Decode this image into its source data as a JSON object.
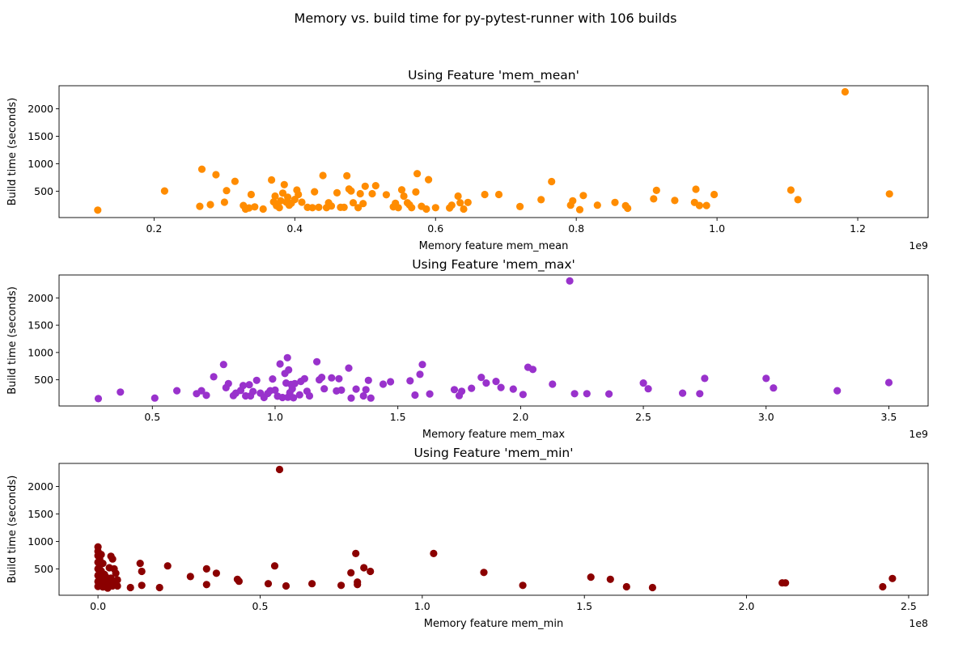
{
  "suptitle": "Memory vs. build time for py-pytest-runner with 106 builds",
  "chart_data": [
    {
      "type": "scatter",
      "title": "Using Feature 'mem_mean'",
      "xlabel": "Memory feature mem_mean",
      "ylabel": "Build time (seconds)",
      "x_offset_label": "1e9",
      "color": "#ff8c00",
      "xlim": [
        0.065,
        1.3
      ],
      "ylim": [
        20,
        2420
      ],
      "xticks": [
        0.2,
        0.4,
        0.6,
        0.8,
        1.0,
        1.2
      ],
      "xtick_labels": [
        "0.2",
        "0.4",
        "0.6",
        "0.8",
        "1.0",
        "1.2"
      ],
      "yticks": [
        500,
        1000,
        1500,
        2000
      ],
      "ytick_labels": [
        "500",
        "1000",
        "1500",
        "2000"
      ],
      "points": [
        [
          0.12,
          155
        ],
        [
          0.215,
          505
        ],
        [
          0.265,
          225
        ],
        [
          0.268,
          900
        ],
        [
          0.28,
          255
        ],
        [
          0.288,
          800
        ],
        [
          0.3,
          300
        ],
        [
          0.303,
          510
        ],
        [
          0.315,
          680
        ],
        [
          0.327,
          240
        ],
        [
          0.33,
          175
        ],
        [
          0.335,
          195
        ],
        [
          0.338,
          440
        ],
        [
          0.343,
          215
        ],
        [
          0.355,
          175
        ],
        [
          0.367,
          705
        ],
        [
          0.37,
          305
        ],
        [
          0.372,
          410
        ],
        [
          0.374,
          235
        ],
        [
          0.378,
          200
        ],
        [
          0.38,
          325
        ],
        [
          0.383,
          465
        ],
        [
          0.385,
          620
        ],
        [
          0.388,
          300
        ],
        [
          0.39,
          390
        ],
        [
          0.392,
          245
        ],
        [
          0.395,
          280
        ],
        [
          0.4,
          350
        ],
        [
          0.403,
          520
        ],
        [
          0.405,
          440
        ],
        [
          0.41,
          300
        ],
        [
          0.418,
          205
        ],
        [
          0.425,
          200
        ],
        [
          0.428,
          490
        ],
        [
          0.434,
          205
        ],
        [
          0.44,
          785
        ],
        [
          0.445,
          200
        ],
        [
          0.448,
          290
        ],
        [
          0.452,
          230
        ],
        [
          0.46,
          470
        ],
        [
          0.465,
          205
        ],
        [
          0.47,
          205
        ],
        [
          0.474,
          780
        ],
        [
          0.477,
          540
        ],
        [
          0.48,
          505
        ],
        [
          0.483,
          290
        ],
        [
          0.49,
          200
        ],
        [
          0.493,
          455
        ],
        [
          0.497,
          275
        ],
        [
          0.5,
          590
        ],
        [
          0.51,
          455
        ],
        [
          0.515,
          600
        ],
        [
          0.53,
          435
        ],
        [
          0.54,
          215
        ],
        [
          0.543,
          280
        ],
        [
          0.547,
          200
        ],
        [
          0.552,
          525
        ],
        [
          0.555,
          410
        ],
        [
          0.56,
          290
        ],
        [
          0.563,
          250
        ],
        [
          0.566,
          200
        ],
        [
          0.572,
          485
        ],
        [
          0.574,
          820
        ],
        [
          0.58,
          225
        ],
        [
          0.587,
          175
        ],
        [
          0.59,
          710
        ],
        [
          0.6,
          200
        ],
        [
          0.62,
          195
        ],
        [
          0.623,
          245
        ],
        [
          0.632,
          410
        ],
        [
          0.635,
          290
        ],
        [
          0.64,
          175
        ],
        [
          0.646,
          295
        ],
        [
          0.67,
          440
        ],
        [
          0.69,
          440
        ],
        [
          0.72,
          220
        ],
        [
          0.75,
          345
        ],
        [
          0.765,
          675
        ],
        [
          0.792,
          245
        ],
        [
          0.795,
          325
        ],
        [
          0.805,
          165
        ],
        [
          0.81,
          420
        ],
        [
          0.83,
          245
        ],
        [
          0.855,
          295
        ],
        [
          0.87,
          235
        ],
        [
          0.873,
          190
        ],
        [
          0.91,
          360
        ],
        [
          0.914,
          515
        ],
        [
          0.94,
          330
        ],
        [
          0.968,
          295
        ],
        [
          0.97,
          535
        ],
        [
          0.975,
          240
        ],
        [
          0.985,
          240
        ],
        [
          0.996,
          440
        ],
        [
          1.105,
          520
        ],
        [
          1.115,
          345
        ],
        [
          1.182,
          2310
        ],
        [
          1.245,
          450
        ]
      ]
    },
    {
      "type": "scatter",
      "title": "Using Feature 'mem_max'",
      "xlabel": "Memory feature mem_max",
      "ylabel": "Build time (seconds)",
      "x_offset_label": "1e9",
      "color": "#9932cc",
      "xlim": [
        0.12,
        3.66
      ],
      "ylim": [
        20,
        2420
      ],
      "xticks": [
        0.5,
        1.0,
        1.5,
        2.0,
        2.5,
        3.0,
        3.5
      ],
      "xtick_labels": [
        "0.5",
        "1.0",
        "1.5",
        "2.0",
        "2.5",
        "3.0",
        "3.5"
      ],
      "yticks": [
        500,
        1000,
        1500,
        2000
      ],
      "ytick_labels": [
        "500",
        "1000",
        "1500",
        "2000"
      ],
      "points": [
        [
          0.28,
          155
        ],
        [
          0.37,
          275
        ],
        [
          0.51,
          165
        ],
        [
          0.6,
          300
        ],
        [
          0.68,
          245
        ],
        [
          0.7,
          300
        ],
        [
          0.72,
          215
        ],
        [
          0.75,
          555
        ],
        [
          0.79,
          780
        ],
        [
          0.8,
          355
        ],
        [
          0.81,
          430
        ],
        [
          0.83,
          210
        ],
        [
          0.84,
          255
        ],
        [
          0.86,
          305
        ],
        [
          0.87,
          395
        ],
        [
          0.88,
          205
        ],
        [
          0.895,
          410
        ],
        [
          0.9,
          205
        ],
        [
          0.91,
          285
        ],
        [
          0.925,
          490
        ],
        [
          0.94,
          255
        ],
        [
          0.955,
          175
        ],
        [
          0.97,
          250
        ],
        [
          0.98,
          300
        ],
        [
          0.99,
          515
        ],
        [
          1.0,
          310
        ],
        [
          1.01,
          200
        ],
        [
          1.02,
          790
        ],
        [
          1.03,
          175
        ],
        [
          1.04,
          615
        ],
        [
          1.045,
          440
        ],
        [
          1.05,
          905
        ],
        [
          1.052,
          180
        ],
        [
          1.055,
          680
        ],
        [
          1.06,
          265
        ],
        [
          1.065,
          415
        ],
        [
          1.07,
          335
        ],
        [
          1.075,
          170
        ],
        [
          1.08,
          430
        ],
        [
          1.1,
          225
        ],
        [
          1.105,
          470
        ],
        [
          1.12,
          520
        ],
        [
          1.13,
          290
        ],
        [
          1.14,
          205
        ],
        [
          1.17,
          830
        ],
        [
          1.18,
          500
        ],
        [
          1.19,
          545
        ],
        [
          1.2,
          335
        ],
        [
          1.23,
          535
        ],
        [
          1.25,
          295
        ],
        [
          1.26,
          520
        ],
        [
          1.27,
          310
        ],
        [
          1.3,
          715
        ],
        [
          1.31,
          165
        ],
        [
          1.33,
          330
        ],
        [
          1.36,
          205
        ],
        [
          1.37,
          320
        ],
        [
          1.38,
          490
        ],
        [
          1.39,
          165
        ],
        [
          1.44,
          420
        ],
        [
          1.47,
          465
        ],
        [
          1.55,
          480
        ],
        [
          1.57,
          220
        ],
        [
          1.59,
          600
        ],
        [
          1.6,
          780
        ],
        [
          1.63,
          240
        ],
        [
          1.73,
          320
        ],
        [
          1.75,
          210
        ],
        [
          1.76,
          290
        ],
        [
          1.8,
          345
        ],
        [
          1.84,
          545
        ],
        [
          1.86,
          440
        ],
        [
          1.9,
          470
        ],
        [
          1.92,
          360
        ],
        [
          1.97,
          330
        ],
        [
          2.01,
          230
        ],
        [
          2.03,
          730
        ],
        [
          2.05,
          690
        ],
        [
          2.13,
          420
        ],
        [
          2.22,
          245
        ],
        [
          2.27,
          245
        ],
        [
          2.36,
          240
        ],
        [
          2.5,
          440
        ],
        [
          2.52,
          335
        ],
        [
          2.66,
          255
        ],
        [
          2.73,
          245
        ],
        [
          2.75,
          525
        ],
        [
          3.0,
          525
        ],
        [
          3.03,
          350
        ],
        [
          3.29,
          300
        ],
        [
          3.5,
          450
        ],
        [
          2.2,
          2310
        ]
      ]
    },
    {
      "type": "scatter",
      "title": "Using Feature 'mem_min'",
      "xlabel": "Memory feature mem_min",
      "ylabel": "Build time (seconds)",
      "x_offset_label": "1e8",
      "color": "#8b0000",
      "xlim": [
        -0.12,
        2.56
      ],
      "ylim": [
        20,
        2420
      ],
      "xticks": [
        0.0,
        0.5,
        1.0,
        1.5,
        2.0,
        2.5
      ],
      "xtick_labels": [
        "0.0",
        "0.5",
        "1.0",
        "1.5",
        "2.0",
        "2.5"
      ],
      "yticks": [
        500,
        1000,
        1500,
        2000
      ],
      "ytick_labels": [
        "500",
        "1000",
        "1500",
        "2000"
      ],
      "points": [
        [
          0.0,
          900
        ],
        [
          0.0,
          820
        ],
        [
          0.0,
          740
        ],
        [
          0.005,
          680
        ],
        [
          0.0,
          620
        ],
        [
          0.005,
          560
        ],
        [
          0.0,
          500
        ],
        [
          0.005,
          440
        ],
        [
          0.0,
          380
        ],
        [
          0.005,
          320
        ],
        [
          0.0,
          270
        ],
        [
          0.005,
          220
        ],
        [
          0.0,
          180
        ],
        [
          0.01,
          760
        ],
        [
          0.01,
          460
        ],
        [
          0.01,
          300
        ],
        [
          0.015,
          600
        ],
        [
          0.015,
          250
        ],
        [
          0.015,
          170
        ],
        [
          0.02,
          400
        ],
        [
          0.025,
          350
        ],
        [
          0.025,
          200
        ],
        [
          0.03,
          280
        ],
        [
          0.03,
          150
        ],
        [
          0.035,
          520
        ],
        [
          0.035,
          230
        ],
        [
          0.04,
          730
        ],
        [
          0.04,
          330
        ],
        [
          0.045,
          680
        ],
        [
          0.045,
          190
        ],
        [
          0.05,
          500
        ],
        [
          0.05,
          250
        ],
        [
          0.055,
          420
        ],
        [
          0.06,
          300
        ],
        [
          0.06,
          190
        ],
        [
          0.1,
          160
        ],
        [
          0.13,
          600
        ],
        [
          0.135,
          455
        ],
        [
          0.135,
          200
        ],
        [
          0.19,
          160
        ],
        [
          0.215,
          555
        ],
        [
          0.285,
          360
        ],
        [
          0.335,
          500
        ],
        [
          0.335,
          215
        ],
        [
          0.365,
          420
        ],
        [
          0.43,
          310
        ],
        [
          0.435,
          275
        ],
        [
          0.525,
          230
        ],
        [
          0.545,
          555
        ],
        [
          0.56,
          2310
        ],
        [
          0.58,
          190
        ],
        [
          0.66,
          230
        ],
        [
          0.75,
          200
        ],
        [
          0.78,
          430
        ],
        [
          0.795,
          780
        ],
        [
          0.8,
          260
        ],
        [
          0.8,
          215
        ],
        [
          0.82,
          520
        ],
        [
          0.84,
          455
        ],
        [
          1.035,
          780
        ],
        [
          1.19,
          435
        ],
        [
          1.31,
          200
        ],
        [
          1.52,
          350
        ],
        [
          1.58,
          310
        ],
        [
          1.63,
          175
        ],
        [
          1.71,
          160
        ],
        [
          2.11,
          245
        ],
        [
          2.12,
          245
        ],
        [
          2.42,
          175
        ],
        [
          2.45,
          325
        ]
      ]
    }
  ]
}
